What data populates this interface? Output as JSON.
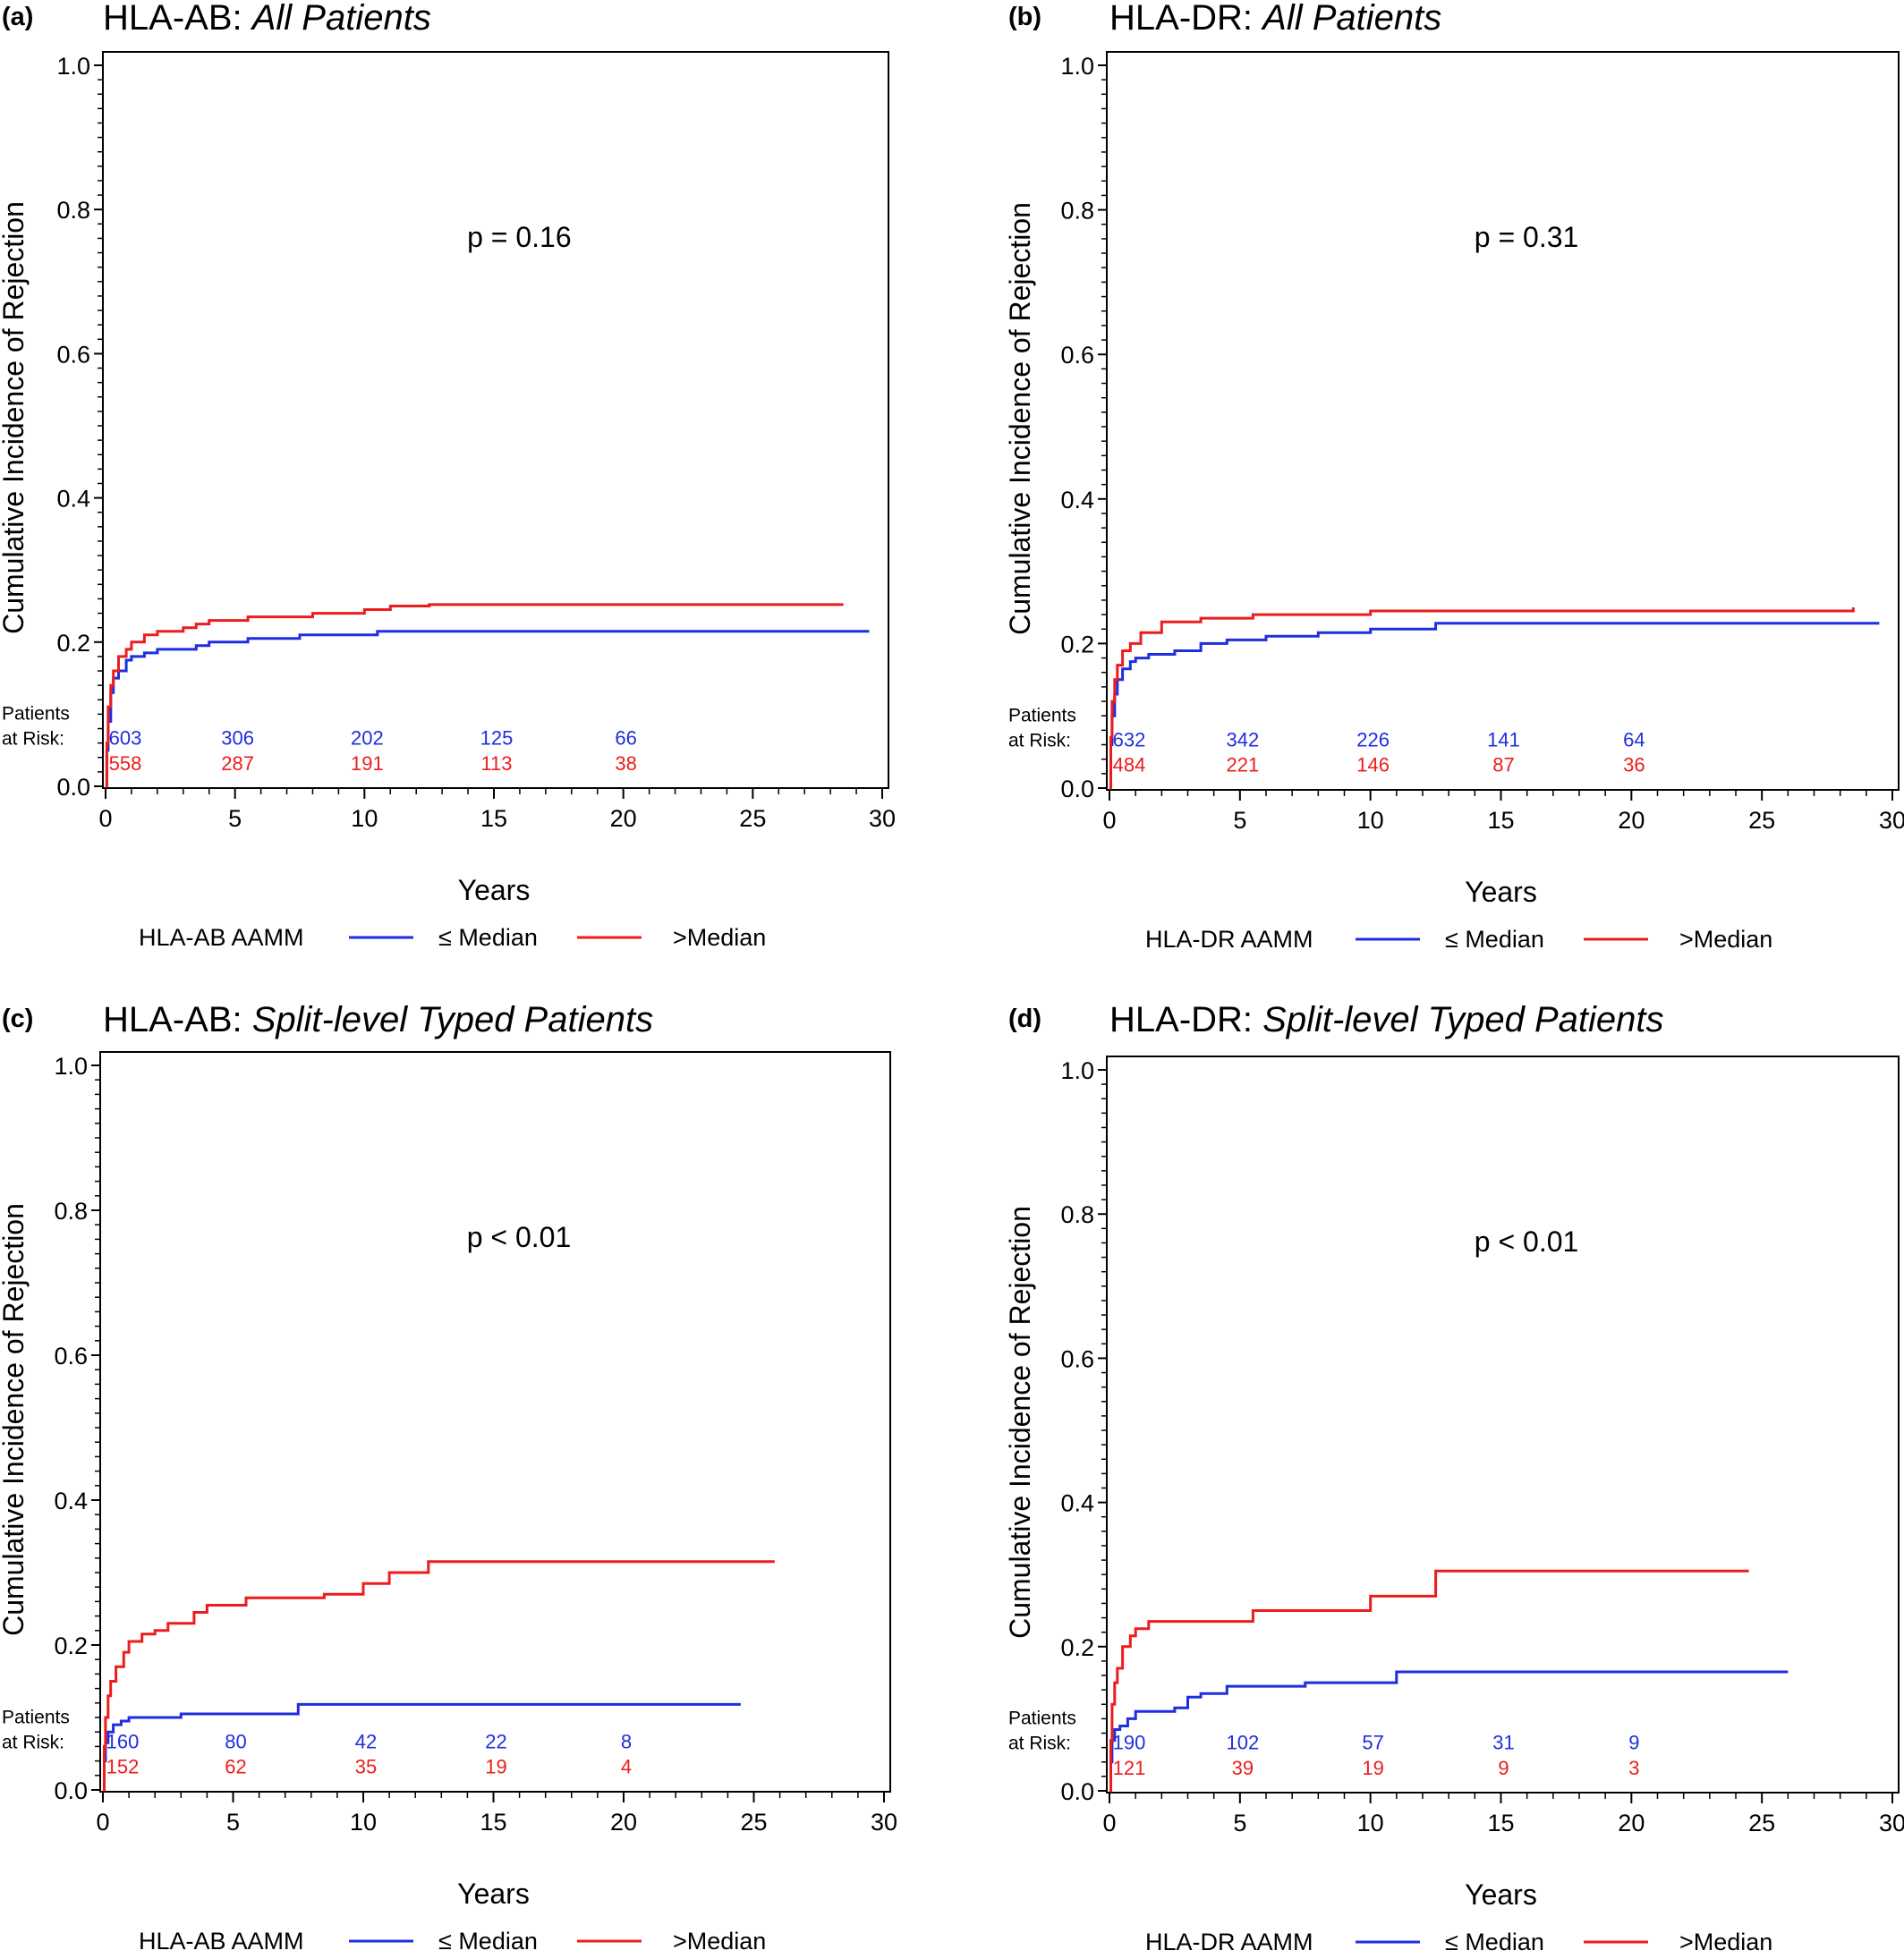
{
  "colors": {
    "le_median": "#1f2ee0",
    "gt_median": "#ee1c1c",
    "axis": "#000000"
  },
  "common": {
    "ylabel": "Cumulative Incidence of Rejection",
    "xlabel": "Years",
    "risk_label_1": "Patients",
    "risk_label_2": "at Risk:",
    "legend_le": "≤ Median",
    "legend_gt": ">Median",
    "x_ticks": [
      0,
      5,
      10,
      15,
      20,
      25,
      30
    ],
    "y_ticks": [
      "0.0",
      "0.2",
      "0.4",
      "0.6",
      "0.8",
      "1.0"
    ]
  },
  "chart_data": [
    {
      "type": "line",
      "panel_letter": "(a)",
      "title_prefix": "HLA-AB:",
      "title_italic": "All Patients",
      "pvalue": "p = 0.16",
      "legend_title": "HLA-AB AAMM",
      "xlim": [
        0,
        30
      ],
      "ylim": [
        0,
        1
      ],
      "series": [
        {
          "name": "≤ Median",
          "color": "#1f2ee0",
          "x": [
            0,
            0.05,
            0.1,
            0.2,
            0.3,
            0.5,
            0.8,
            1.0,
            1.5,
            2.0,
            3.5,
            4.0,
            5.5,
            7.5,
            9.5,
            10.5,
            29.5
          ],
          "y": [
            0,
            0.05,
            0.09,
            0.13,
            0.15,
            0.16,
            0.175,
            0.18,
            0.185,
            0.19,
            0.195,
            0.2,
            0.205,
            0.21,
            0.21,
            0.215,
            0.215
          ]
        },
        {
          "name": ">Median",
          "color": "#ee1c1c",
          "x": [
            0,
            0.05,
            0.1,
            0.2,
            0.3,
            0.5,
            0.8,
            1.0,
            1.5,
            2.0,
            3.0,
            3.5,
            4.0,
            5.5,
            8.0,
            10.0,
            11.0,
            12.5,
            28.5
          ],
          "y": [
            0,
            0.06,
            0.11,
            0.14,
            0.16,
            0.18,
            0.19,
            0.2,
            0.21,
            0.215,
            0.22,
            0.225,
            0.23,
            0.235,
            0.24,
            0.245,
            0.25,
            0.252,
            0.252
          ]
        }
      ],
      "risk_x": [
        0,
        5,
        10,
        15,
        20
      ],
      "risk_le": [
        "603",
        "306",
        "202",
        "125",
        "66"
      ],
      "risk_gt": [
        "558",
        "287",
        "191",
        "113",
        "38"
      ]
    },
    {
      "type": "line",
      "panel_letter": "(b)",
      "title_prefix": "HLA-DR:",
      "title_italic": "All Patients",
      "pvalue": "p = 0.31",
      "legend_title": "HLA-DR AAMM",
      "xlim": [
        0,
        30
      ],
      "ylim": [
        0,
        1
      ],
      "series": [
        {
          "name": "≤ Median",
          "color": "#1f2ee0",
          "x": [
            0,
            0.05,
            0.1,
            0.2,
            0.3,
            0.5,
            0.8,
            1.0,
            1.5,
            2.5,
            3.5,
            4.5,
            6.0,
            8.0,
            10.0,
            12.5,
            29.5
          ],
          "y": [
            0,
            0.06,
            0.1,
            0.13,
            0.15,
            0.165,
            0.175,
            0.18,
            0.185,
            0.19,
            0.2,
            0.205,
            0.21,
            0.215,
            0.22,
            0.228,
            0.228
          ]
        },
        {
          "name": ">Median",
          "color": "#ee1c1c",
          "x": [
            0,
            0.05,
            0.1,
            0.2,
            0.3,
            0.5,
            0.8,
            1.2,
            2.0,
            3.5,
            5.5,
            10.0,
            28.5
          ],
          "y": [
            0,
            0.07,
            0.12,
            0.15,
            0.17,
            0.19,
            0.2,
            0.215,
            0.23,
            0.235,
            0.24,
            0.245,
            0.25
          ]
        }
      ],
      "risk_x": [
        0,
        5,
        10,
        15,
        20
      ],
      "risk_le": [
        "632",
        "342",
        "226",
        "141",
        "64"
      ],
      "risk_gt": [
        "484",
        "221",
        "146",
        "87",
        "36"
      ]
    },
    {
      "type": "line",
      "panel_letter": "(c)",
      "title_prefix": "HLA-AB:",
      "title_italic": "Split-level Typed Patients",
      "pvalue": "p < 0.01",
      "legend_title": "HLA-AB AAMM",
      "xlim": [
        0,
        30
      ],
      "ylim": [
        0,
        1
      ],
      "series": [
        {
          "name": "≤ Median",
          "color": "#1f2ee0",
          "x": [
            0,
            0.05,
            0.1,
            0.2,
            0.4,
            0.7,
            1.0,
            3.0,
            7.5,
            24.5
          ],
          "y": [
            0,
            0.04,
            0.065,
            0.08,
            0.09,
            0.095,
            0.1,
            0.105,
            0.118,
            0.118
          ]
        },
        {
          "name": ">Median",
          "color": "#ee1c1c",
          "x": [
            0,
            0.05,
            0.1,
            0.2,
            0.3,
            0.5,
            0.8,
            1.0,
            1.5,
            2.0,
            2.5,
            3.5,
            4.0,
            5.5,
            8.5,
            10.0,
            11.0,
            12.5,
            25.8
          ],
          "y": [
            0,
            0.06,
            0.1,
            0.13,
            0.15,
            0.17,
            0.19,
            0.205,
            0.215,
            0.22,
            0.23,
            0.245,
            0.255,
            0.265,
            0.27,
            0.285,
            0.3,
            0.315,
            0.315
          ]
        }
      ],
      "risk_x": [
        0,
        5,
        10,
        15,
        20
      ],
      "risk_le": [
        "160",
        "80",
        "42",
        "22",
        "8"
      ],
      "risk_gt": [
        "152",
        "62",
        "35",
        "19",
        "4"
      ]
    },
    {
      "type": "line",
      "panel_letter": "(d)",
      "title_prefix": "HLA-DR:",
      "title_italic": "Split-level Typed Patients",
      "pvalue": "p < 0.01",
      "legend_title": "HLA-DR AAMM",
      "xlim": [
        0,
        30
      ],
      "ylim": [
        0,
        1
      ],
      "series": [
        {
          "name": "≤ Median",
          "color": "#1f2ee0",
          "x": [
            0,
            0.05,
            0.1,
            0.2,
            0.4,
            0.7,
            1.0,
            2.5,
            3.0,
            3.5,
            4.5,
            7.5,
            11.0,
            26.0
          ],
          "y": [
            0,
            0.04,
            0.07,
            0.085,
            0.09,
            0.1,
            0.11,
            0.115,
            0.13,
            0.135,
            0.145,
            0.15,
            0.165,
            0.165
          ]
        },
        {
          "name": ">Median",
          "color": "#ee1c1c",
          "x": [
            0,
            0.05,
            0.1,
            0.2,
            0.3,
            0.5,
            0.8,
            1.0,
            1.5,
            5.5,
            10.0,
            12.5,
            24.5
          ],
          "y": [
            0,
            0.07,
            0.12,
            0.15,
            0.17,
            0.2,
            0.215,
            0.225,
            0.235,
            0.25,
            0.27,
            0.305,
            0.305
          ]
        }
      ],
      "risk_x": [
        0,
        5,
        10,
        15,
        20
      ],
      "risk_le": [
        "190",
        "102",
        "57",
        "31",
        "9"
      ],
      "risk_gt": [
        "121",
        "39",
        "19",
        "9",
        "3"
      ]
    }
  ]
}
